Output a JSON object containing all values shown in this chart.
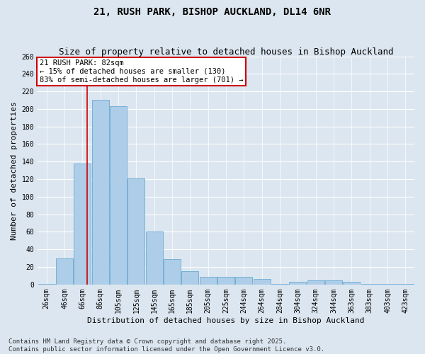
{
  "title": "21, RUSH PARK, BISHOP AUCKLAND, DL14 6NR",
  "subtitle": "Size of property relative to detached houses in Bishop Auckland",
  "xlabel": "Distribution of detached houses by size in Bishop Auckland",
  "ylabel": "Number of detached properties",
  "bar_labels": [
    "26sqm",
    "46sqm",
    "66sqm",
    "86sqm",
    "105sqm",
    "125sqm",
    "145sqm",
    "165sqm",
    "185sqm",
    "205sqm",
    "225sqm",
    "244sqm",
    "264sqm",
    "284sqm",
    "304sqm",
    "324sqm",
    "344sqm",
    "363sqm",
    "383sqm",
    "403sqm",
    "423sqm"
  ],
  "bar_values": [
    1,
    30,
    138,
    210,
    203,
    121,
    60,
    29,
    15,
    9,
    9,
    9,
    6,
    1,
    3,
    5,
    5,
    3,
    1,
    1,
    1
  ],
  "bar_color": "#aecde8",
  "bar_edge_color": "#6aaad4",
  "ylim": [
    0,
    260
  ],
  "yticks": [
    0,
    20,
    40,
    60,
    80,
    100,
    120,
    140,
    160,
    180,
    200,
    220,
    240,
    260
  ],
  "vline_x": 2.28,
  "vline_color": "#cc0000",
  "annotation_title": "21 RUSH PARK: 82sqm",
  "annotation_line1": "← 15% of detached houses are smaller (130)",
  "annotation_line2": "83% of semi-detached houses are larger (701) →",
  "annotation_box_color": "#ffffff",
  "annotation_box_edge": "#cc0000",
  "background_color": "#dce6f0",
  "grid_color": "#ffffff",
  "footer1": "Contains HM Land Registry data © Crown copyright and database right 2025.",
  "footer2": "Contains public sector information licensed under the Open Government Licence v3.0.",
  "title_fontsize": 10,
  "subtitle_fontsize": 9,
  "axis_label_fontsize": 8,
  "tick_fontsize": 7,
  "annotation_fontsize": 7.5,
  "footer_fontsize": 6.5
}
